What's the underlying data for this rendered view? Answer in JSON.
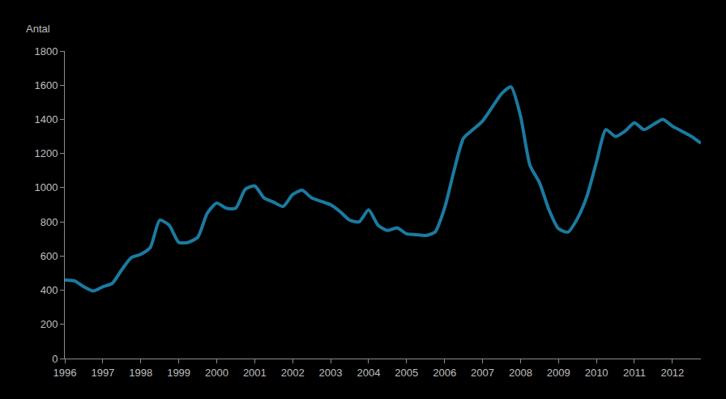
{
  "chart_data": {
    "type": "line",
    "y_label": "Antal",
    "color": "#1b7aa0",
    "grid": false,
    "categories": [
      "1996",
      null,
      null,
      null,
      "1997",
      null,
      null,
      null,
      "1998",
      null,
      null,
      null,
      "1999",
      null,
      null,
      null,
      "2000",
      null,
      null,
      null,
      "2001",
      null,
      null,
      null,
      "2002",
      null,
      null,
      null,
      "2003",
      null,
      null,
      null,
      "2004",
      null,
      null,
      null,
      "2005",
      null,
      null,
      null,
      "2006",
      null,
      null,
      null,
      "2007",
      null,
      null,
      null,
      "2008",
      null,
      null,
      null,
      "2009",
      null,
      null,
      null,
      "2010",
      null,
      null,
      null,
      "2011",
      null,
      null,
      null,
      "2012",
      null,
      null,
      null
    ],
    "values": [
      460,
      455,
      420,
      395,
      420,
      440,
      520,
      590,
      610,
      650,
      810,
      780,
      680,
      680,
      710,
      850,
      910,
      880,
      880,
      990,
      1010,
      940,
      915,
      890,
      960,
      985,
      940,
      920,
      900,
      860,
      810,
      800,
      870,
      780,
      750,
      765,
      730,
      725,
      720,
      740,
      880,
      1100,
      1290,
      1340,
      1390,
      1470,
      1550,
      1590,
      1420,
      1130,
      1030,
      870,
      760,
      740,
      820,
      950,
      1150,
      1340,
      1300,
      1330,
      1380,
      1340,
      1370,
      1400,
      1360,
      1330,
      1300,
      1260
    ],
    "ylim": [
      0,
      1800
    ],
    "yticks": [
      0,
      200,
      400,
      600,
      800,
      1000,
      1200,
      1400,
      1600,
      1800
    ]
  }
}
